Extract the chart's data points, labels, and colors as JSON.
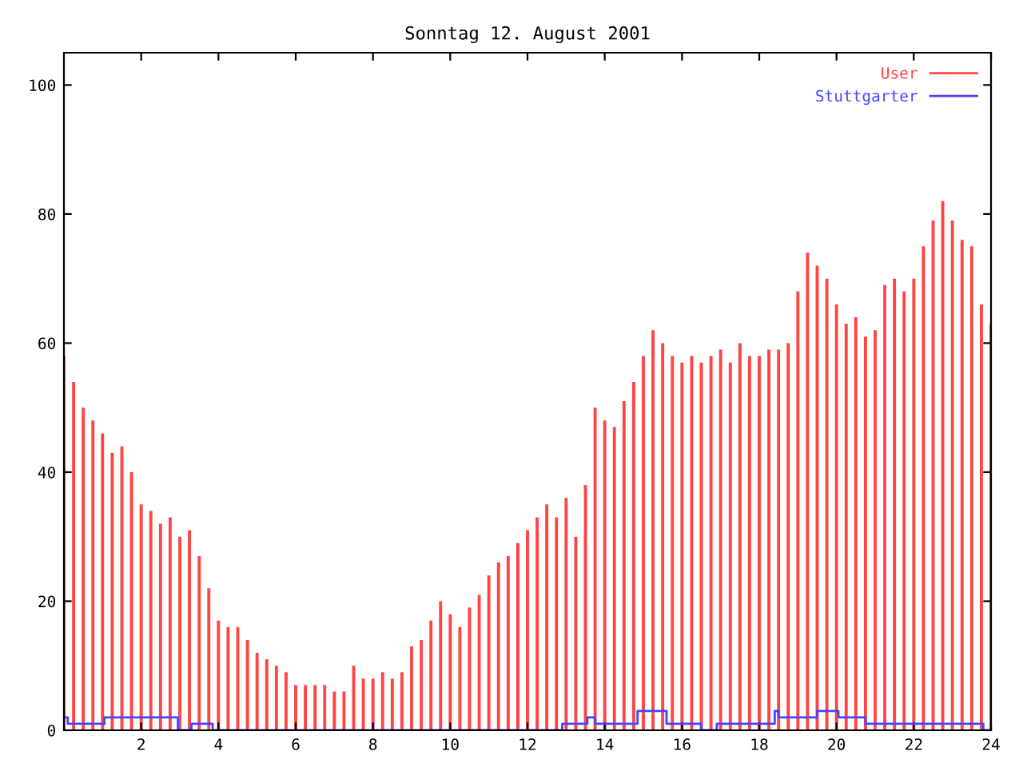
{
  "chart_data": {
    "type": "bar",
    "title": "Sonntag 12. August 2001",
    "xlim": [
      0,
      24
    ],
    "xticks": [
      2,
      4,
      6,
      8,
      10,
      12,
      14,
      16,
      18,
      20,
      22,
      24
    ],
    "ylim": [
      0,
      105
    ],
    "yticks": [
      0,
      20,
      40,
      60,
      80,
      100
    ],
    "grid": false,
    "legend": "top right",
    "series": [
      {
        "name": "User",
        "color": "#ff4444",
        "x": [
          0,
          0.25,
          0.5,
          0.75,
          1,
          1.25,
          1.5,
          1.75,
          2,
          2.25,
          2.5,
          2.75,
          3,
          3.25,
          3.5,
          3.75,
          4,
          4.25,
          4.5,
          4.75,
          5,
          5.25,
          5.5,
          5.75,
          6,
          6.25,
          6.5,
          6.75,
          7,
          7.25,
          7.5,
          7.75,
          8,
          8.25,
          8.5,
          8.75,
          9,
          9.25,
          9.5,
          9.75,
          10,
          10.25,
          10.5,
          10.75,
          11,
          11.25,
          11.5,
          11.75,
          12,
          12.25,
          12.5,
          12.75,
          13,
          13.25,
          13.5,
          13.75,
          14,
          14.25,
          14.5,
          14.75,
          15,
          15.25,
          15.5,
          15.75,
          16,
          16.25,
          16.5,
          16.75,
          17,
          17.25,
          17.5,
          17.75,
          18,
          18.25,
          18.5,
          18.75,
          19,
          19.25,
          19.5,
          19.75,
          20,
          20.25,
          20.5,
          20.75,
          21,
          21.25,
          21.5,
          21.75,
          22,
          22.25,
          22.5,
          22.75,
          23,
          23.25,
          23.5,
          23.75,
          24
        ],
        "values": [
          58,
          54,
          50,
          48,
          46,
          43,
          44,
          40,
          35,
          34,
          32,
          33,
          30,
          31,
          27,
          22,
          17,
          16,
          16,
          14,
          12,
          11,
          10,
          9,
          7,
          7,
          7,
          7,
          6,
          6,
          10,
          8,
          8,
          9,
          8,
          9,
          13,
          14,
          17,
          20,
          18,
          16,
          19,
          21,
          24,
          26,
          27,
          29,
          31,
          33,
          35,
          33,
          36,
          30,
          38,
          50,
          48,
          47,
          51,
          54,
          58,
          62,
          60,
          58,
          57,
          58,
          57,
          58,
          59,
          57,
          60,
          58,
          58,
          59,
          59,
          60,
          68,
          74,
          72,
          70,
          66,
          63,
          64,
          61,
          62,
          69,
          70,
          68,
          70,
          75,
          79,
          82,
          79,
          76,
          75,
          66,
          63
        ]
      },
      {
        "name": "Stuttgarter",
        "type": "step",
        "color": "#4444ff",
        "x": [
          0,
          0.1,
          1.05,
          2.95,
          3.3,
          3.85,
          12.9,
          13.55,
          13.75,
          14.85,
          15.6,
          16.5,
          16.9,
          18.4,
          18.5,
          19.5,
          20.05,
          20.75,
          23.8,
          24
        ],
        "values": [
          2,
          1,
          2,
          0,
          1,
          0,
          1,
          2,
          1,
          3,
          1,
          0,
          1,
          3,
          2,
          3,
          2,
          1,
          0,
          0
        ]
      }
    ]
  }
}
